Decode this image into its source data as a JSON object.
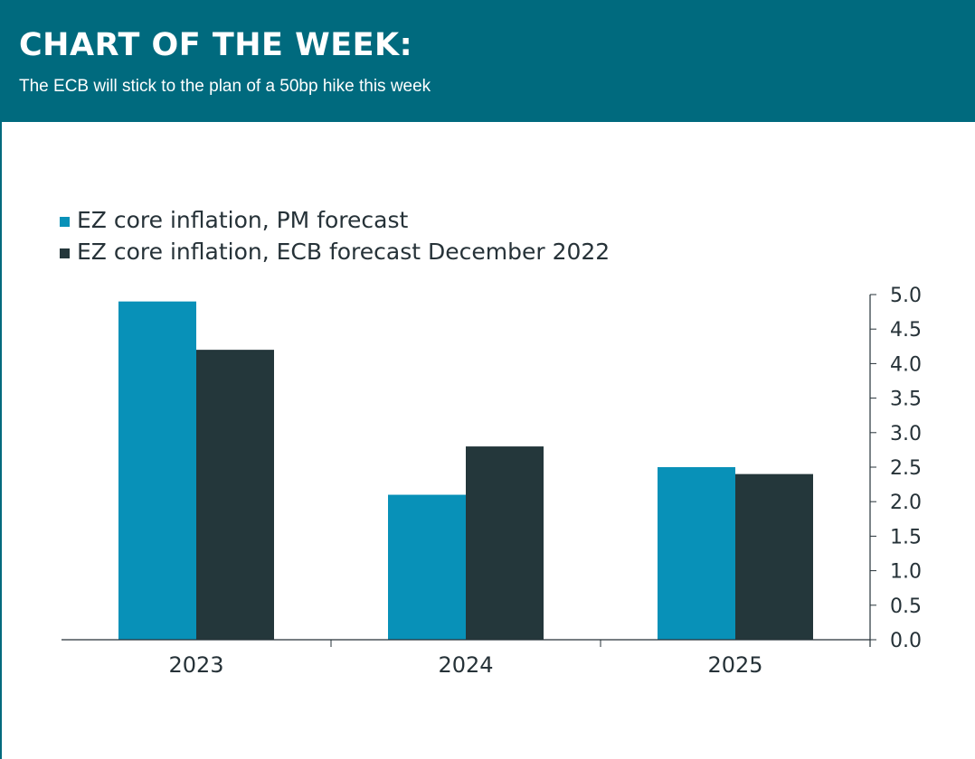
{
  "header": {
    "title": "CHART OF THE WEEK:",
    "subtitle": "The ECB will stick to the plan of a 50bp hike this week"
  },
  "colors": {
    "header_bg": "#006a7e",
    "series_pm": "#0891b8",
    "series_ecb": "#24373b"
  },
  "chart_data": {
    "type": "bar",
    "categories": [
      "2023",
      "2024",
      "2025"
    ],
    "series": [
      {
        "name": "EZ core inflation, PM forecast",
        "values": [
          4.9,
          2.1,
          2.5
        ]
      },
      {
        "name": "EZ core inflation, ECB forecast December 2022",
        "values": [
          4.2,
          2.8,
          2.4
        ]
      }
    ],
    "ylim": [
      0,
      5.0
    ],
    "yticks": [
      "0.0",
      "0.5",
      "1.0",
      "1.5",
      "2.0",
      "2.5",
      "3.0",
      "3.5",
      "4.0",
      "4.5",
      "5.0"
    ],
    "y_axis_side": "right",
    "legend_position": "top-left",
    "grid": false
  }
}
